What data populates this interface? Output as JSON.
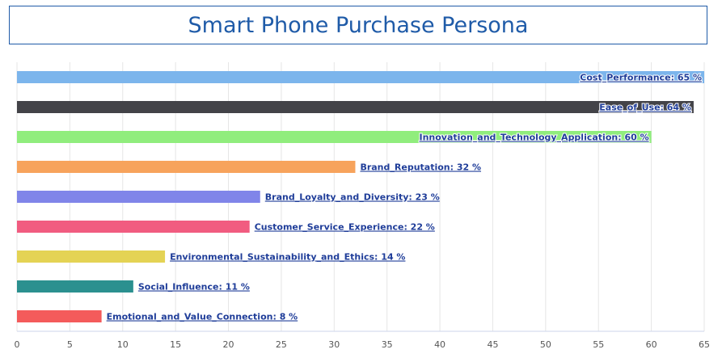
{
  "chart_title": "Smart Phone Purchase Persona",
  "chart_data": {
    "type": "bar",
    "orientation": "horizontal",
    "title": "Smart Phone Purchase Persona",
    "xlim": [
      0,
      65
    ],
    "xticks": [
      0,
      5,
      10,
      15,
      20,
      25,
      30,
      35,
      40,
      45,
      50,
      55,
      60,
      65
    ],
    "grid": true,
    "categories": [
      "Cost_Performance",
      "Ease_of_Use",
      "Innovation_and_Technology_Application",
      "Brand_Reputation",
      "Brand_Loyalty_and_Diversity",
      "Customer_Service_Experience",
      "Environmental_Sustainability_and_Ethics",
      "Social_Influence",
      "Emotional_and_Value_Connection"
    ],
    "values": [
      65,
      64,
      60,
      32,
      23,
      22,
      14,
      11,
      8
    ],
    "labels": [
      "Cost_Performance: 65 %",
      "Ease_of_Use: 64 %",
      "Innovation_and_Technology_Application: 60 %",
      "Brand_Reputation: 32 %",
      "Brand_Loyalty_and_Diversity: 23 %",
      "Customer_Service_Experience: 22 %",
      "Environmental_Sustainability_and_Ethics: 14 %",
      "Social_Influence: 11 %",
      "Emotional_and_Value_Connection: 8 %"
    ],
    "colors": [
      "#7cb5ec",
      "#434348",
      "#90ed7d",
      "#f7a35c",
      "#8085e9",
      "#f15c80",
      "#e4d354",
      "#2b908f",
      "#f45b5b"
    ]
  }
}
